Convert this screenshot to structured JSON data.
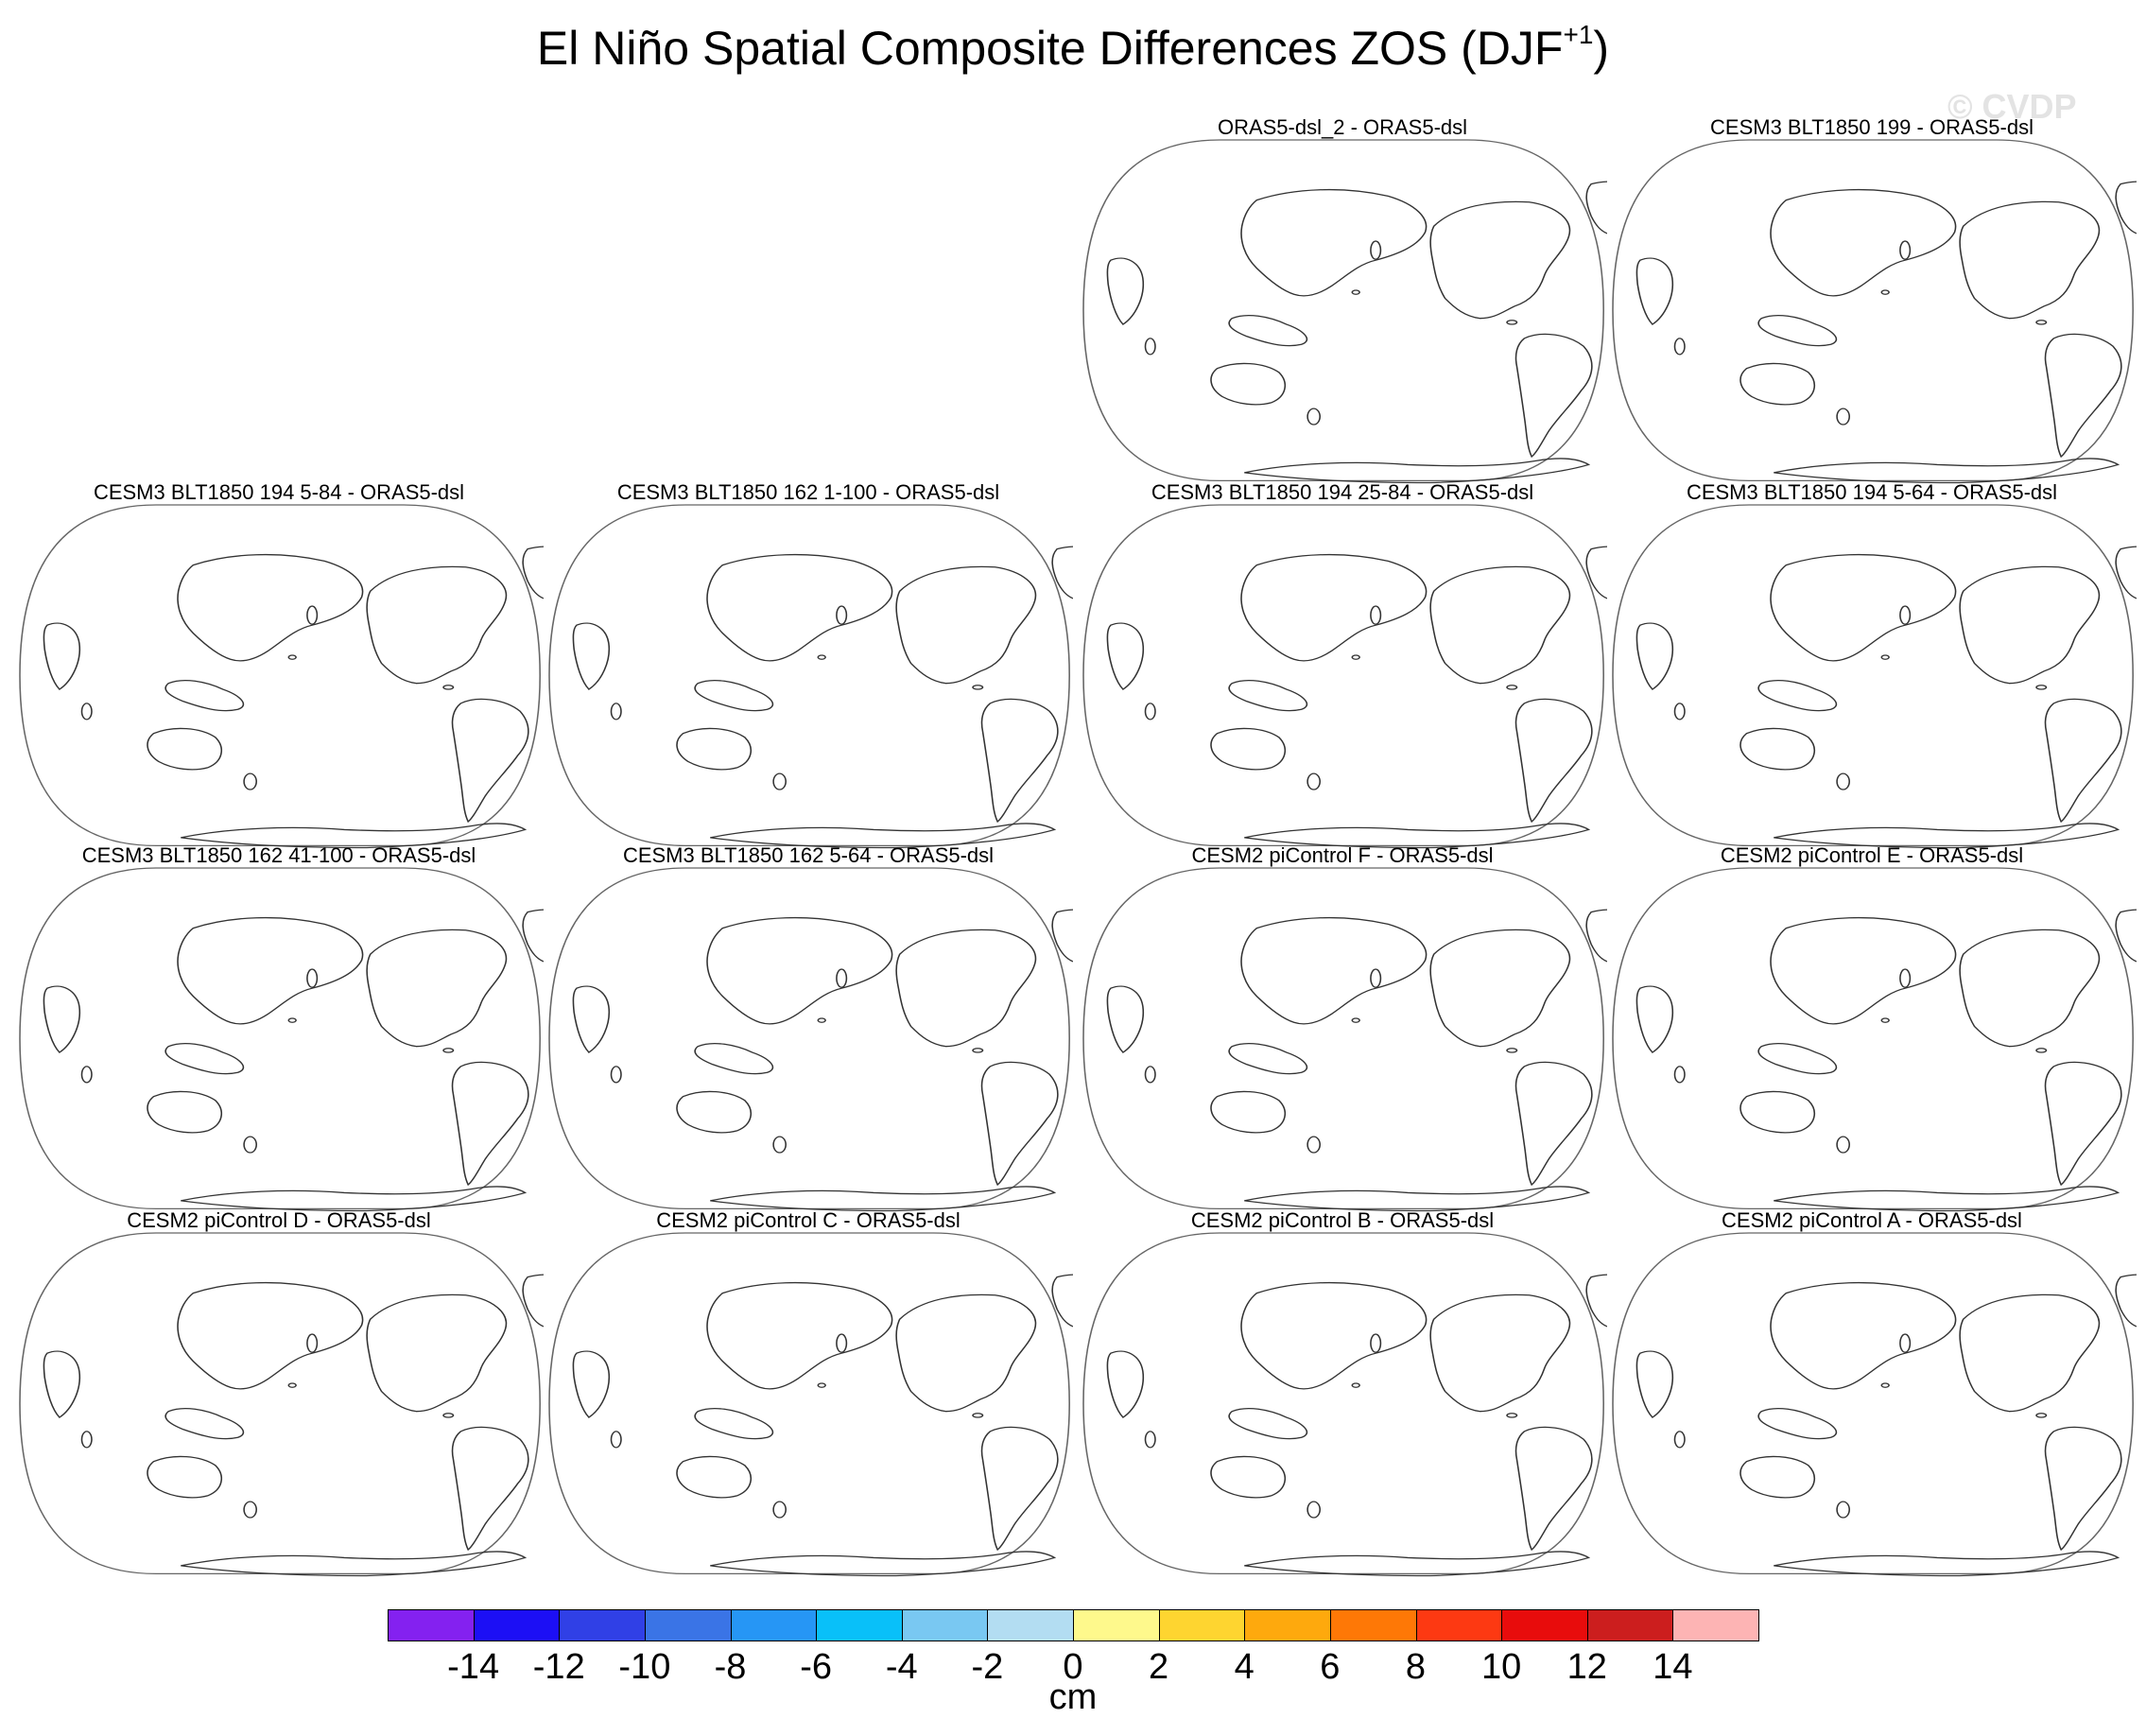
{
  "title": {
    "main": "El Niño Spatial Composite Differences ZOS (DJF",
    "superscript": "+1",
    "close": ")"
  },
  "watermark": "© CVDP",
  "panels": [
    "ORAS5-dsl_2 - ORAS5-dsl",
    "CESM3 BLT1850 199 - ORAS5-dsl",
    "CESM3 BLT1850 194 5-84 - ORAS5-dsl",
    "CESM3 BLT1850 162 1-100 - ORAS5-dsl",
    "CESM3 BLT1850 194 25-84 - ORAS5-dsl",
    "CESM3 BLT1850 194 5-64 - ORAS5-dsl",
    "CESM3 BLT1850 162 41-100 - ORAS5-dsl",
    "CESM3 BLT1850 162 5-64 - ORAS5-dsl",
    "CESM2 piControl F - ORAS5-dsl",
    "CESM2 piControl E - ORAS5-dsl",
    "CESM2 piControl D - ORAS5-dsl",
    "CESM2 piControl C - ORAS5-dsl",
    "CESM2 piControl B - ORAS5-dsl",
    "CESM2 piControl A - ORAS5-dsl"
  ],
  "colorbar": {
    "colors": [
      "#8421f0",
      "#1c0ff5",
      "#3040e6",
      "#3a74e6",
      "#2696f5",
      "#09c0f9",
      "#79c8f2",
      "#b3ddf2",
      "#fef98c",
      "#fed530",
      "#fea90d",
      "#fe7806",
      "#fd3912",
      "#e80c0c",
      "#cc1e1e",
      "#fdb4b4"
    ],
    "labels": [
      "-14",
      "-12",
      "-10",
      "-8",
      "-6",
      "-4",
      "-2",
      "0",
      "2",
      "4",
      "6",
      "8",
      "10",
      "12",
      "14"
    ],
    "units": "cm"
  }
}
